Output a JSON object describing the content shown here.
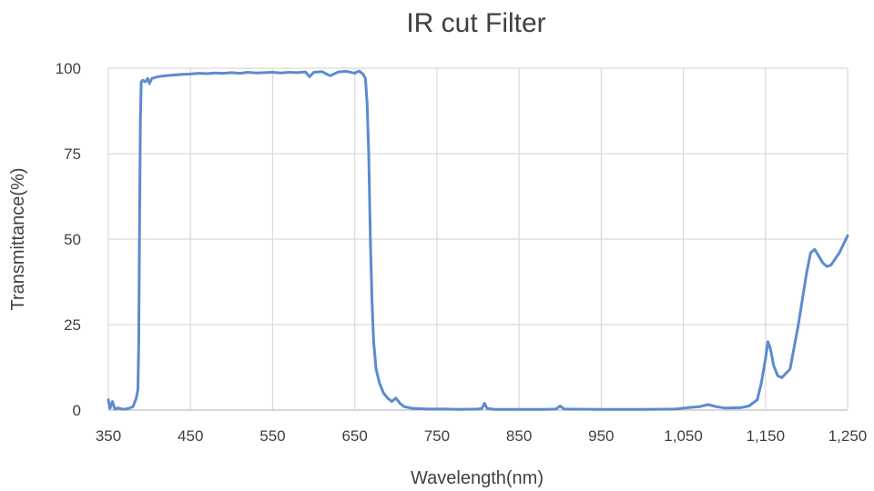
{
  "chart_data": {
    "type": "line",
    "title": "IR cut Filter",
    "xlabel": "Wavelength(nm)",
    "ylabel": "Transmittance(%)",
    "xlim": [
      350,
      1250
    ],
    "ylim": [
      0,
      100
    ],
    "x_ticks": [
      350,
      450,
      550,
      650,
      750,
      850,
      950,
      1050,
      1150,
      1250
    ],
    "x_tick_labels": [
      "350",
      "450",
      "550",
      "650",
      "750",
      "850",
      "950",
      "1,050",
      "1,150",
      "1,250"
    ],
    "y_ticks": [
      0,
      25,
      50,
      75,
      100
    ],
    "y_tick_labels": [
      "0",
      "25",
      "50",
      "75",
      "100"
    ],
    "grid": true,
    "legend": "none",
    "series_color": "#5b8bd0",
    "series": [
      {
        "points": [
          [
            350,
            3
          ],
          [
            352,
            0.5
          ],
          [
            355,
            2.5
          ],
          [
            358,
            0.3
          ],
          [
            362,
            0.6
          ],
          [
            368,
            0.2
          ],
          [
            375,
            0.5
          ],
          [
            380,
            1.0
          ],
          [
            384,
            3.5
          ],
          [
            386,
            6
          ],
          [
            387,
            20
          ],
          [
            388,
            55
          ],
          [
            389,
            85
          ],
          [
            390,
            96
          ],
          [
            392,
            96.5
          ],
          [
            395,
            96
          ],
          [
            398,
            97
          ],
          [
            400,
            95.5
          ],
          [
            403,
            97
          ],
          [
            410,
            97.5
          ],
          [
            420,
            97.8
          ],
          [
            430,
            98
          ],
          [
            440,
            98.2
          ],
          [
            450,
            98.3
          ],
          [
            460,
            98.5
          ],
          [
            470,
            98.4
          ],
          [
            480,
            98.6
          ],
          [
            490,
            98.5
          ],
          [
            500,
            98.7
          ],
          [
            510,
            98.5
          ],
          [
            520,
            98.8
          ],
          [
            530,
            98.6
          ],
          [
            540,
            98.7
          ],
          [
            550,
            98.8
          ],
          [
            560,
            98.6
          ],
          [
            570,
            98.8
          ],
          [
            580,
            98.7
          ],
          [
            590,
            98.9
          ],
          [
            595,
            97.5
          ],
          [
            600,
            98.8
          ],
          [
            610,
            99
          ],
          [
            620,
            97.8
          ],
          [
            630,
            98.9
          ],
          [
            640,
            99.1
          ],
          [
            650,
            98.5
          ],
          [
            655,
            99.2
          ],
          [
            660,
            98.3
          ],
          [
            663,
            97
          ],
          [
            665,
            90
          ],
          [
            667,
            75
          ],
          [
            669,
            50
          ],
          [
            671,
            32
          ],
          [
            673,
            20
          ],
          [
            676,
            12
          ],
          [
            680,
            8
          ],
          [
            685,
            5
          ],
          [
            690,
            3.5
          ],
          [
            695,
            2.5
          ],
          [
            700,
            3.5
          ],
          [
            705,
            2
          ],
          [
            710,
            1
          ],
          [
            720,
            0.5
          ],
          [
            740,
            0.3
          ],
          [
            760,
            0.3
          ],
          [
            780,
            0.2
          ],
          [
            800,
            0.3
          ],
          [
            805,
            0.5
          ],
          [
            808,
            2
          ],
          [
            811,
            0.5
          ],
          [
            820,
            0.2
          ],
          [
            850,
            0.2
          ],
          [
            880,
            0.2
          ],
          [
            895,
            0.3
          ],
          [
            900,
            1.2
          ],
          [
            905,
            0.3
          ],
          [
            950,
            0.2
          ],
          [
            1000,
            0.2
          ],
          [
            1040,
            0.3
          ],
          [
            1060,
            0.8
          ],
          [
            1070,
            1.0
          ],
          [
            1080,
            1.6
          ],
          [
            1090,
            1.0
          ],
          [
            1100,
            0.6
          ],
          [
            1120,
            0.7
          ],
          [
            1130,
            1.2
          ],
          [
            1140,
            3
          ],
          [
            1145,
            8
          ],
          [
            1150,
            15
          ],
          [
            1153,
            20
          ],
          [
            1156,
            18
          ],
          [
            1160,
            13
          ],
          [
            1165,
            10
          ],
          [
            1170,
            9.5
          ],
          [
            1180,
            12
          ],
          [
            1190,
            25
          ],
          [
            1200,
            40
          ],
          [
            1205,
            46
          ],
          [
            1210,
            47
          ],
          [
            1215,
            45
          ],
          [
            1220,
            43
          ],
          [
            1225,
            42
          ],
          [
            1230,
            42.5
          ],
          [
            1240,
            46
          ],
          [
            1250,
            51
          ]
        ]
      }
    ]
  }
}
